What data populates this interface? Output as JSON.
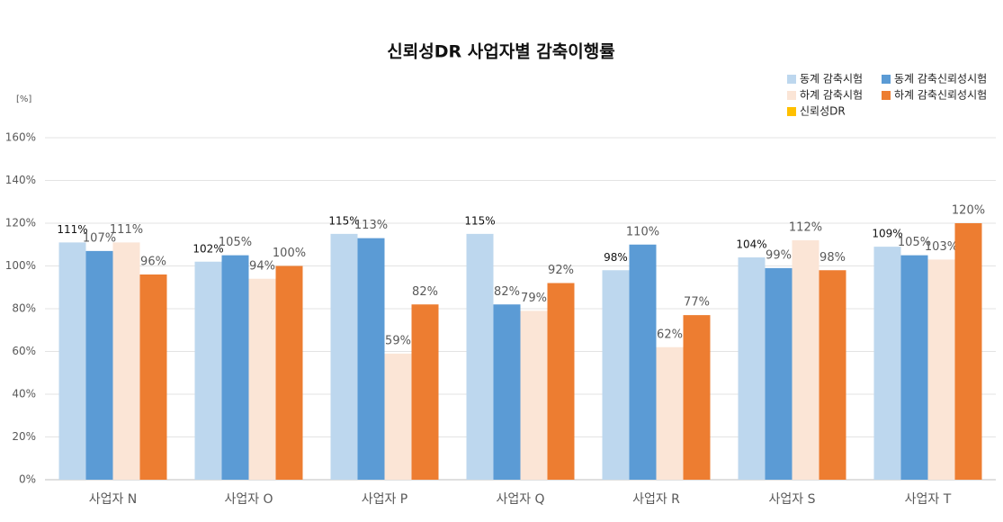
{
  "chart_data": {
    "type": "bar",
    "title": "신뢰성DR 사업자별 감축이행률",
    "y_label": "[%]",
    "categories": [
      "사업자 N",
      "사업자 O",
      "사업자 P",
      "사업자 Q",
      "사업자 R",
      "사업자 S",
      "사업자 T"
    ],
    "series": [
      {
        "name": "동계 감축시험",
        "color": "#bdd7ee",
        "values": [
          111,
          102,
          115,
          115,
          98,
          104,
          109
        ],
        "value_labels": [
          "111%",
          "102%",
          "115%",
          "115%",
          "98%",
          "104%",
          "109%"
        ]
      },
      {
        "name": "동계 감축신뢰성시험",
        "color": "#5b9bd5",
        "values": [
          107,
          105,
          113,
          82,
          110,
          99,
          105
        ],
        "value_labels": [
          "107%",
          "105%",
          "113%",
          "82%",
          "110%",
          "99%",
          "105%"
        ]
      },
      {
        "name": "하계 감축시험",
        "color": "#fbe5d6",
        "values": [
          111,
          94,
          59,
          79,
          62,
          112,
          103
        ],
        "value_labels": [
          "111%",
          "94%",
          "59%",
          "79%",
          "62%",
          "112%",
          "103%"
        ]
      },
      {
        "name": "하계 감축신뢰성시험",
        "color": "#ed7d31",
        "values": [
          96,
          100,
          82,
          92,
          77,
          98,
          120
        ],
        "value_labels": [
          "96%",
          "100%",
          "82%",
          "92%",
          "77%",
          "98%",
          "120%"
        ]
      },
      {
        "name": "신뢰성DR",
        "color": "#ffc000",
        "values": [
          null,
          null,
          null,
          null,
          null,
          null,
          null
        ]
      }
    ],
    "ylim": [
      0,
      160
    ],
    "yticks": [
      {
        "value": 0,
        "label": "0%"
      },
      {
        "value": 20,
        "label": "20%"
      },
      {
        "value": 40,
        "label": "40%"
      },
      {
        "value": 60,
        "label": "60%"
      },
      {
        "value": 80,
        "label": "80%"
      },
      {
        "value": 100,
        "label": "100%"
      },
      {
        "value": 120,
        "label": "120%"
      },
      {
        "value": 140,
        "label": "140%"
      },
      {
        "value": 160,
        "label": "160%"
      }
    ],
    "grid": true
  }
}
